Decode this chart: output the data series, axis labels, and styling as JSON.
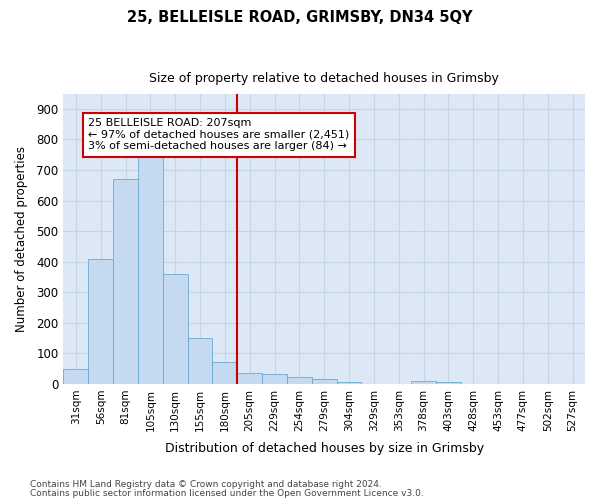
{
  "title": "25, BELLEISLE ROAD, GRIMSBY, DN34 5QY",
  "subtitle": "Size of property relative to detached houses in Grimsby",
  "xlabel": "Distribution of detached houses by size in Grimsby",
  "ylabel": "Number of detached properties",
  "categories": [
    "31sqm",
    "56sqm",
    "81sqm",
    "105sqm",
    "130sqm",
    "155sqm",
    "180sqm",
    "205sqm",
    "229sqm",
    "254sqm",
    "279sqm",
    "304sqm",
    "329sqm",
    "353sqm",
    "378sqm",
    "403sqm",
    "428sqm",
    "453sqm",
    "477sqm",
    "502sqm",
    "527sqm"
  ],
  "values": [
    50,
    410,
    670,
    745,
    360,
    150,
    73,
    35,
    33,
    22,
    17,
    5,
    0,
    0,
    8,
    6,
    0,
    0,
    0,
    0,
    0
  ],
  "bar_color": "#c5d9f0",
  "bar_edge_color": "#6aaad4",
  "vline_x_index": 7,
  "annotation_line1": "25 BELLEISLE ROAD: 207sqm",
  "annotation_line2": "← 97% of detached houses are smaller (2,451)",
  "annotation_line3": "3% of semi-detached houses are larger (84) →",
  "annotation_box_color": "#ffffff",
  "annotation_box_edge": "#cc0000",
  "vline_color": "#cc0000",
  "ylim": [
    0,
    950
  ],
  "yticks": [
    0,
    100,
    200,
    300,
    400,
    500,
    600,
    700,
    800,
    900
  ],
  "grid_color": "#c5d5e5",
  "bg_color": "#dce8f5",
  "fig_bg_color": "#ffffff",
  "footer_line1": "Contains HM Land Registry data © Crown copyright and database right 2024.",
  "footer_line2": "Contains public sector information licensed under the Open Government Licence v3.0."
}
